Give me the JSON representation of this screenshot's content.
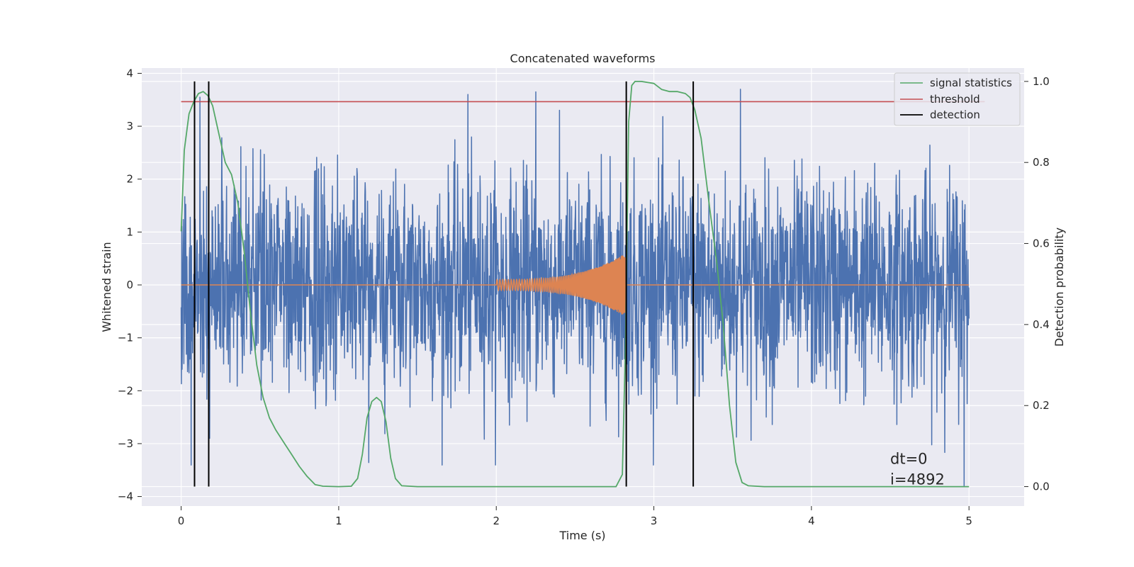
{
  "chart_data": {
    "type": "line",
    "title": "Concatenated waveforms",
    "xlabel": "Time (s)",
    "ylabel": "Whitened strain",
    "y2label": "Detection probability",
    "xlim": [
      -0.25,
      5.35
    ],
    "ylim": [
      -4.18,
      4.1
    ],
    "y2lim": [
      -0.048,
      1.033
    ],
    "xticks": [
      "0",
      "1",
      "2",
      "3",
      "4",
      "5"
    ],
    "yticks": [
      "−4",
      "−3",
      "−2",
      "−1",
      "0",
      "1",
      "2",
      "3",
      "4"
    ],
    "y2ticks": [
      "0.0",
      "0.2",
      "0.4",
      "0.6",
      "0.8",
      "1.0"
    ],
    "grid": true,
    "legend_position": "top-right",
    "colors": {
      "strain": "#4c72b0",
      "waveform": "#dd8452",
      "signal_statistics": "#55a868",
      "threshold": "#c44e52",
      "detection": "#000000",
      "plot_bg": "#eaeaf2",
      "grid": "#ffffff"
    },
    "series": [
      {
        "name": "signal statistics",
        "axis": "right",
        "x": [
          0,
          0.02,
          0.05,
          0.08,
          0.11,
          0.14,
          0.17,
          0.2,
          0.24,
          0.28,
          0.32,
          0.36,
          0.4,
          0.44,
          0.48,
          0.52,
          0.56,
          0.6,
          0.65,
          0.7,
          0.75,
          0.8,
          0.85,
          0.9,
          1.0,
          1.08,
          1.12,
          1.15,
          1.18,
          1.21,
          1.24,
          1.27,
          1.3,
          1.33,
          1.36,
          1.4,
          1.5,
          2.0,
          2.5,
          2.76,
          2.8,
          2.82,
          2.84,
          2.86,
          2.88,
          2.92,
          3.0,
          3.05,
          3.1,
          3.15,
          3.2,
          3.23,
          3.26,
          3.3,
          3.35,
          3.4,
          3.44,
          3.48,
          3.52,
          3.56,
          3.6,
          3.7,
          4.0,
          4.5,
          5.0
        ],
        "y": [
          0.63,
          0.83,
          0.92,
          0.95,
          0.97,
          0.975,
          0.965,
          0.94,
          0.87,
          0.8,
          0.77,
          0.7,
          0.58,
          0.43,
          0.3,
          0.22,
          0.17,
          0.14,
          0.11,
          0.08,
          0.05,
          0.025,
          0.005,
          0.001,
          0.0,
          0.001,
          0.02,
          0.08,
          0.17,
          0.21,
          0.22,
          0.21,
          0.16,
          0.07,
          0.02,
          0.002,
          0.0,
          0.0,
          0.0,
          0.0,
          0.03,
          0.35,
          0.9,
          0.99,
          1.0,
          1.0,
          0.995,
          0.98,
          0.975,
          0.975,
          0.97,
          0.96,
          0.93,
          0.86,
          0.7,
          0.55,
          0.4,
          0.2,
          0.06,
          0.01,
          0.002,
          0.0,
          0.0,
          0.0,
          0.0
        ]
      },
      {
        "name": "threshold",
        "axis": "right",
        "x": [
          0,
          5.1
        ],
        "y": [
          0.95,
          0.95
        ]
      },
      {
        "name": "detection",
        "axis": "right",
        "x": [
          0.085,
          0.175,
          2.825,
          3.25
        ],
        "y_range": [
          0.0,
          1.0
        ]
      },
      {
        "axis": "left",
        "x_range": [
          0,
          5
        ],
        "envelope_typical": 1.4,
        "envelope_peak": 3.7,
        "notable_peaks": [
          {
            "x": 1.82,
            "y": 3.6
          },
          {
            "x": 2.25,
            "y": 3.65
          },
          {
            "x": 3.55,
            "y": 3.7
          },
          {
            "x": 0.12,
            "y": 3.55
          },
          {
            "x": 0.18,
            "y": -2.9
          },
          {
            "x": 4.97,
            "y": -3.8
          }
        ]
      },
      {
        "axis": "left",
        "x_range": [
          2.0,
          2.82
        ],
        "amplitude_start": 0.1,
        "amplitude_end": 0.6,
        "elsewhere": 0
      }
    ],
    "annotations": [
      "dt=0",
      "i=4892"
    ],
    "annotation_position": [
      4.5,
      -3.3
    ]
  }
}
